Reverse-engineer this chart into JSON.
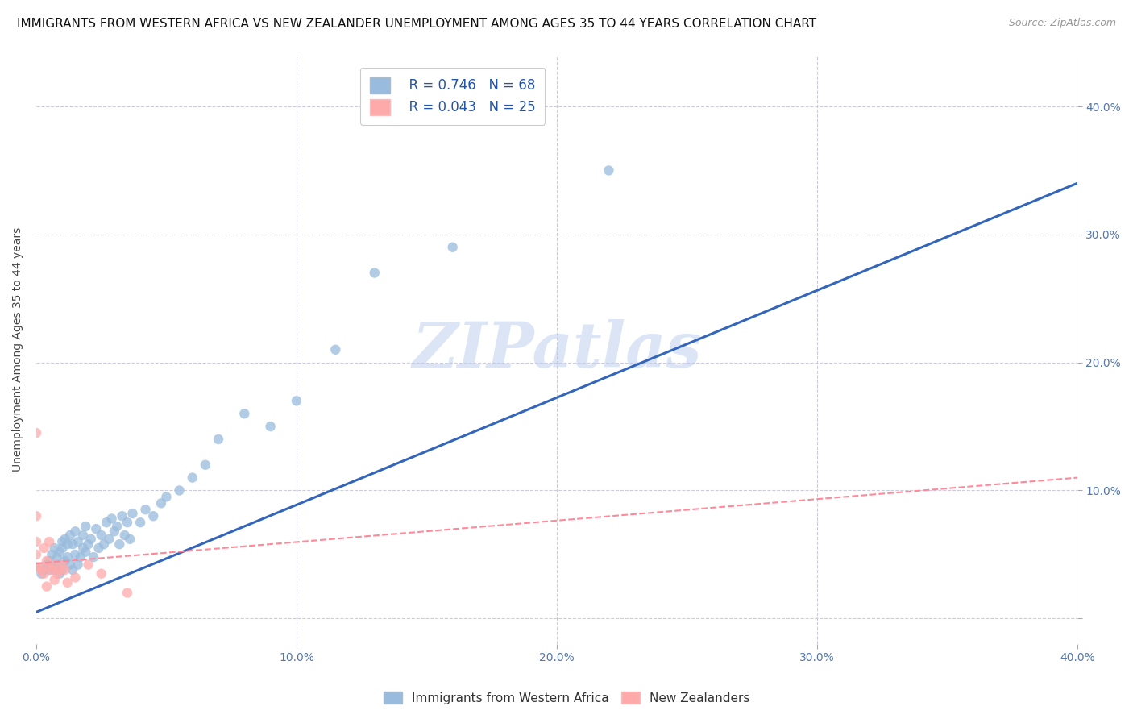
{
  "title": "IMMIGRANTS FROM WESTERN AFRICA VS NEW ZEALANDER UNEMPLOYMENT AMONG AGES 35 TO 44 YEARS CORRELATION CHART",
  "source": "Source: ZipAtlas.com",
  "ylabel": "Unemployment Among Ages 35 to 44 years",
  "xlim": [
    0.0,
    0.4
  ],
  "ylim": [
    -0.02,
    0.44
  ],
  "xticks": [
    0.0,
    0.1,
    0.2,
    0.3,
    0.4
  ],
  "yticks": [
    0.0,
    0.1,
    0.2,
    0.3,
    0.4
  ],
  "xtick_labels": [
    "0.0%",
    "10.0%",
    "20.0%",
    "30.0%",
    "40.0%"
  ],
  "ytick_labels_right": [
    "",
    "10.0%",
    "20.0%",
    "30.0%",
    "40.0%"
  ],
  "blue_color": "#99BBDD",
  "pink_color": "#FFAAAA",
  "blue_line_color": "#3366BB",
  "pink_line_color": "#FF8899",
  "watermark": "ZIPatlas",
  "watermark_color": "#BBCCEE",
  "legend_R1": "R = 0.746",
  "legend_N1": "N = 68",
  "legend_R2": "R = 0.043",
  "legend_N2": "N = 25",
  "blue_scatter_x": [
    0.0,
    0.002,
    0.003,
    0.004,
    0.005,
    0.005,
    0.006,
    0.006,
    0.007,
    0.007,
    0.008,
    0.008,
    0.009,
    0.009,
    0.01,
    0.01,
    0.01,
    0.011,
    0.011,
    0.012,
    0.012,
    0.013,
    0.013,
    0.014,
    0.014,
    0.015,
    0.015,
    0.016,
    0.016,
    0.017,
    0.018,
    0.018,
    0.019,
    0.019,
    0.02,
    0.021,
    0.022,
    0.023,
    0.024,
    0.025,
    0.026,
    0.027,
    0.028,
    0.029,
    0.03,
    0.031,
    0.032,
    0.033,
    0.034,
    0.035,
    0.036,
    0.037,
    0.04,
    0.042,
    0.045,
    0.048,
    0.05,
    0.055,
    0.06,
    0.065,
    0.07,
    0.08,
    0.09,
    0.1,
    0.115,
    0.13,
    0.16,
    0.22
  ],
  "blue_scatter_y": [
    0.04,
    0.035,
    0.038,
    0.042,
    0.038,
    0.045,
    0.04,
    0.05,
    0.038,
    0.055,
    0.042,
    0.048,
    0.035,
    0.052,
    0.038,
    0.055,
    0.06,
    0.045,
    0.062,
    0.048,
    0.058,
    0.042,
    0.065,
    0.038,
    0.058,
    0.05,
    0.068,
    0.042,
    0.06,
    0.048,
    0.055,
    0.065,
    0.052,
    0.072,
    0.058,
    0.062,
    0.048,
    0.07,
    0.055,
    0.065,
    0.058,
    0.075,
    0.062,
    0.078,
    0.068,
    0.072,
    0.058,
    0.08,
    0.065,
    0.075,
    0.062,
    0.082,
    0.075,
    0.085,
    0.08,
    0.09,
    0.095,
    0.1,
    0.11,
    0.12,
    0.14,
    0.16,
    0.15,
    0.17,
    0.21,
    0.27,
    0.29,
    0.35
  ],
  "pink_scatter_x": [
    0.0,
    0.0,
    0.0,
    0.0,
    0.0,
    0.001,
    0.002,
    0.003,
    0.003,
    0.004,
    0.004,
    0.005,
    0.005,
    0.006,
    0.007,
    0.007,
    0.008,
    0.009,
    0.01,
    0.011,
    0.012,
    0.015,
    0.02,
    0.025,
    0.035
  ],
  "pink_scatter_y": [
    0.04,
    0.05,
    0.06,
    0.08,
    0.145,
    0.04,
    0.038,
    0.055,
    0.035,
    0.045,
    0.025,
    0.04,
    0.06,
    0.038,
    0.042,
    0.03,
    0.035,
    0.038,
    0.042,
    0.038,
    0.028,
    0.032,
    0.042,
    0.035,
    0.02
  ],
  "blue_line_x": [
    0.0,
    0.4
  ],
  "blue_line_y": [
    0.005,
    0.34
  ],
  "pink_line_x": [
    0.0,
    0.4
  ],
  "pink_line_y": [
    0.043,
    0.11
  ],
  "background_color": "#FFFFFF",
  "grid_color": "#CCCCDD",
  "title_fontsize": 11,
  "axis_label_fontsize": 10,
  "tick_fontsize": 10,
  "legend_fontsize": 12
}
